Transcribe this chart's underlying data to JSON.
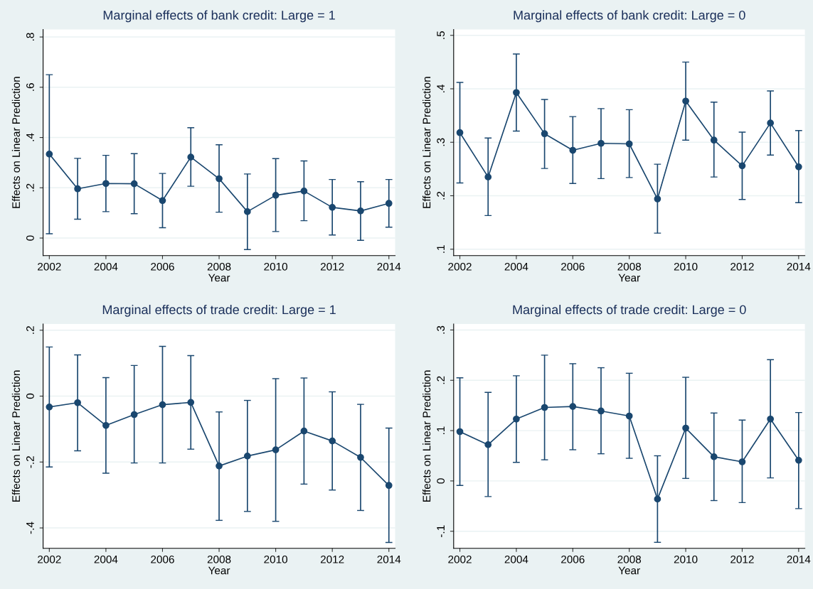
{
  "chart_data": [
    {
      "type": "line",
      "title": "Marginal effects of bank credit: Large = 1",
      "xlabel": "Year",
      "ylabel": "Effects on Linear Prediction",
      "x": [
        2002,
        2003,
        2004,
        2005,
        2006,
        2007,
        2008,
        2009,
        2010,
        2011,
        2012,
        2013,
        2014
      ],
      "series": [
        {
          "color": "#1a476f",
          "values": [
            0.334,
            0.196,
            0.217,
            0.216,
            0.149,
            0.322,
            0.236,
            0.105,
            0.17,
            0.187,
            0.122,
            0.108,
            0.138
          ],
          "errors": [
            [
              0.017,
              0.65
            ],
            [
              0.075,
              0.317
            ],
            [
              0.105,
              0.329
            ],
            [
              0.097,
              0.336
            ],
            [
              0.041,
              0.257
            ],
            [
              0.206,
              0.439
            ],
            [
              0.103,
              0.371
            ],
            [
              -0.046,
              0.255
            ],
            [
              0.026,
              0.316
            ],
            [
              0.069,
              0.307
            ],
            [
              0.012,
              0.233
            ],
            [
              -0.009,
              0.224
            ],
            [
              0.043,
              0.233
            ]
          ]
        }
      ],
      "xlim": [
        2001.78,
        2014.22
      ],
      "xticks": [
        2002,
        2004,
        2006,
        2008,
        2010,
        2012,
        2014
      ],
      "ylim": [
        -0.07,
        0.83
      ],
      "yticks": [
        0,
        {
          "value": 0.2,
          "label": ".2"
        },
        {
          "value": 0.4,
          "label": ".4"
        },
        {
          "value": 0.6,
          "label": ".6"
        },
        {
          "value": 0.8,
          "label": ".8"
        }
      ],
      "grid": "y",
      "marker": "circle",
      "line_style": "solid",
      "legend": false
    },
    {
      "type": "line",
      "title": "Marginal effects of bank credit: Large = 0",
      "xlabel": "Year",
      "ylabel": "Effects on Linear Prediction",
      "x": [
        2002,
        2003,
        2004,
        2005,
        2006,
        2007,
        2008,
        2009,
        2010,
        2011,
        2012,
        2013,
        2014
      ],
      "series": [
        {
          "color": "#1a476f",
          "values": [
            0.318,
            0.235,
            0.393,
            0.316,
            0.285,
            0.298,
            0.297,
            0.194,
            0.377,
            0.304,
            0.256,
            0.336,
            0.254
          ],
          "errors": [
            [
              0.224,
              0.412
            ],
            [
              0.163,
              0.308
            ],
            [
              0.321,
              0.465
            ],
            [
              0.251,
              0.38
            ],
            [
              0.223,
              0.348
            ],
            [
              0.232,
              0.363
            ],
            [
              0.234,
              0.361
            ],
            [
              0.13,
              0.259
            ],
            [
              0.304,
              0.45
            ],
            [
              0.235,
              0.375
            ],
            [
              0.193,
              0.319
            ],
            [
              0.276,
              0.396
            ],
            [
              0.187,
              0.322
            ]
          ]
        }
      ],
      "xlim": [
        2001.78,
        2014.22
      ],
      "xticks": [
        2002,
        2004,
        2006,
        2008,
        2010,
        2012,
        2014
      ],
      "ylim": [
        0.088,
        0.511
      ],
      "yticks": [
        {
          "value": 0.1,
          "label": ".1"
        },
        {
          "value": 0.2,
          "label": ".2"
        },
        {
          "value": 0.3,
          "label": ".3"
        },
        {
          "value": 0.4,
          "label": ".4"
        },
        {
          "value": 0.5,
          "label": ".5"
        }
      ],
      "grid": "y",
      "marker": "circle",
      "line_style": "solid",
      "legend": false
    },
    {
      "type": "line",
      "title": "Marginal effects of trade credit: Large = 1",
      "xlabel": "Year",
      "ylabel": "Effects on Linear Prediction",
      "x": [
        2002,
        2003,
        2004,
        2005,
        2006,
        2007,
        2008,
        2009,
        2010,
        2011,
        2012,
        2013,
        2014
      ],
      "series": [
        {
          "color": "#1a476f",
          "values": [
            -0.033,
            -0.02,
            -0.089,
            -0.056,
            -0.026,
            -0.019,
            -0.212,
            -0.182,
            -0.163,
            -0.106,
            -0.136,
            -0.186,
            -0.271
          ],
          "errors": [
            [
              -0.215,
              0.149
            ],
            [
              -0.166,
              0.125
            ],
            [
              -0.234,
              0.056
            ],
            [
              -0.203,
              0.093
            ],
            [
              -0.203,
              0.151
            ],
            [
              -0.161,
              0.123
            ],
            [
              -0.377,
              -0.048
            ],
            [
              -0.35,
              -0.013
            ],
            [
              -0.38,
              0.053
            ],
            [
              -0.267,
              0.055
            ],
            [
              -0.285,
              0.013
            ],
            [
              -0.347,
              -0.025
            ],
            [
              -0.444,
              -0.097
            ]
          ]
        }
      ],
      "xlim": [
        2001.78,
        2014.22
      ],
      "xticks": [
        2002,
        2004,
        2006,
        2008,
        2010,
        2012,
        2014
      ],
      "ylim": [
        -0.462,
        0.219
      ],
      "yticks": [
        {
          "value": -0.4,
          "label": "-.4"
        },
        {
          "value": -0.2,
          "label": "-.2"
        },
        0,
        {
          "value": 0.2,
          "label": ".2"
        }
      ],
      "grid": "y",
      "marker": "circle",
      "line_style": "solid",
      "legend": false
    },
    {
      "type": "line",
      "title": "Marginal effects of trade credit: Large = 0",
      "xlabel": "Year",
      "ylabel": "Effects on Linear Prediction",
      "x": [
        2002,
        2003,
        2004,
        2005,
        2006,
        2007,
        2008,
        2009,
        2010,
        2011,
        2012,
        2013,
        2014
      ],
      "series": [
        {
          "color": "#1a476f",
          "values": [
            0.098,
            0.072,
            0.123,
            0.146,
            0.148,
            0.139,
            0.129,
            -0.036,
            0.105,
            0.048,
            0.038,
            0.123,
            0.041
          ],
          "errors": [
            [
              -0.009,
              0.205
            ],
            [
              -0.031,
              0.176
            ],
            [
              0.037,
              0.209
            ],
            [
              0.042,
              0.25
            ],
            [
              0.062,
              0.233
            ],
            [
              0.054,
              0.225
            ],
            [
              0.045,
              0.214
            ],
            [
              -0.122,
              0.05
            ],
            [
              0.005,
              0.206
            ],
            [
              -0.039,
              0.135
            ],
            [
              -0.043,
              0.121
            ],
            [
              0.006,
              0.241
            ],
            [
              -0.055,
              0.136
            ]
          ]
        }
      ],
      "xlim": [
        2001.78,
        2014.22
      ],
      "xticks": [
        2002,
        2004,
        2006,
        2008,
        2010,
        2012,
        2014
      ],
      "ylim": [
        -0.134,
        0.312
      ],
      "yticks": [
        {
          "value": -0.1,
          "label": "-.1"
        },
        0,
        {
          "value": 0.1,
          "label": ".1"
        },
        {
          "value": 0.2,
          "label": ".2"
        },
        {
          "value": 0.3,
          "label": ".3"
        }
      ],
      "grid": "y",
      "marker": "circle",
      "line_style": "solid",
      "legend": false
    }
  ]
}
